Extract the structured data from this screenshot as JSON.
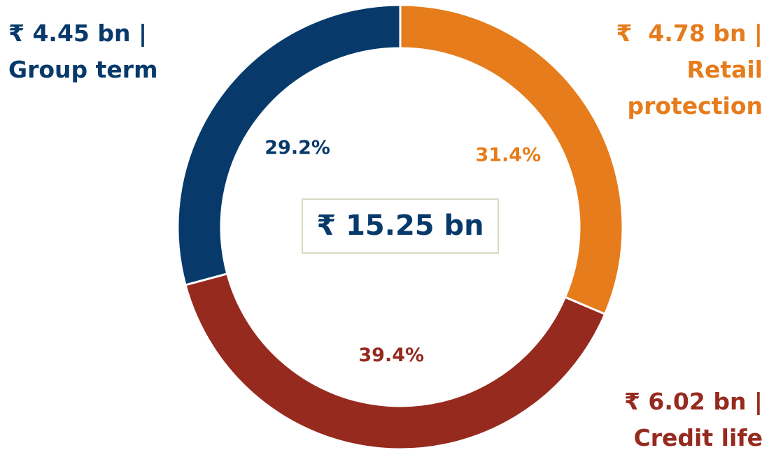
{
  "chart_data": {
    "type": "donut",
    "categories": [
      "Retail protection",
      "Credit life",
      "Group term"
    ],
    "values": [
      31.4,
      39.4,
      29.2
    ],
    "value_labels": [
      "31.4%",
      "39.4%",
      "29.2%"
    ],
    "amount_labels": [
      "₹  4.78 bn |",
      "₹ 6.02 bn |",
      "₹ 4.45 bn |"
    ],
    "colors": [
      "#e67c1b",
      "#962a1f",
      "#073a6b"
    ],
    "total_label": "₹ 15.25 bn"
  }
}
